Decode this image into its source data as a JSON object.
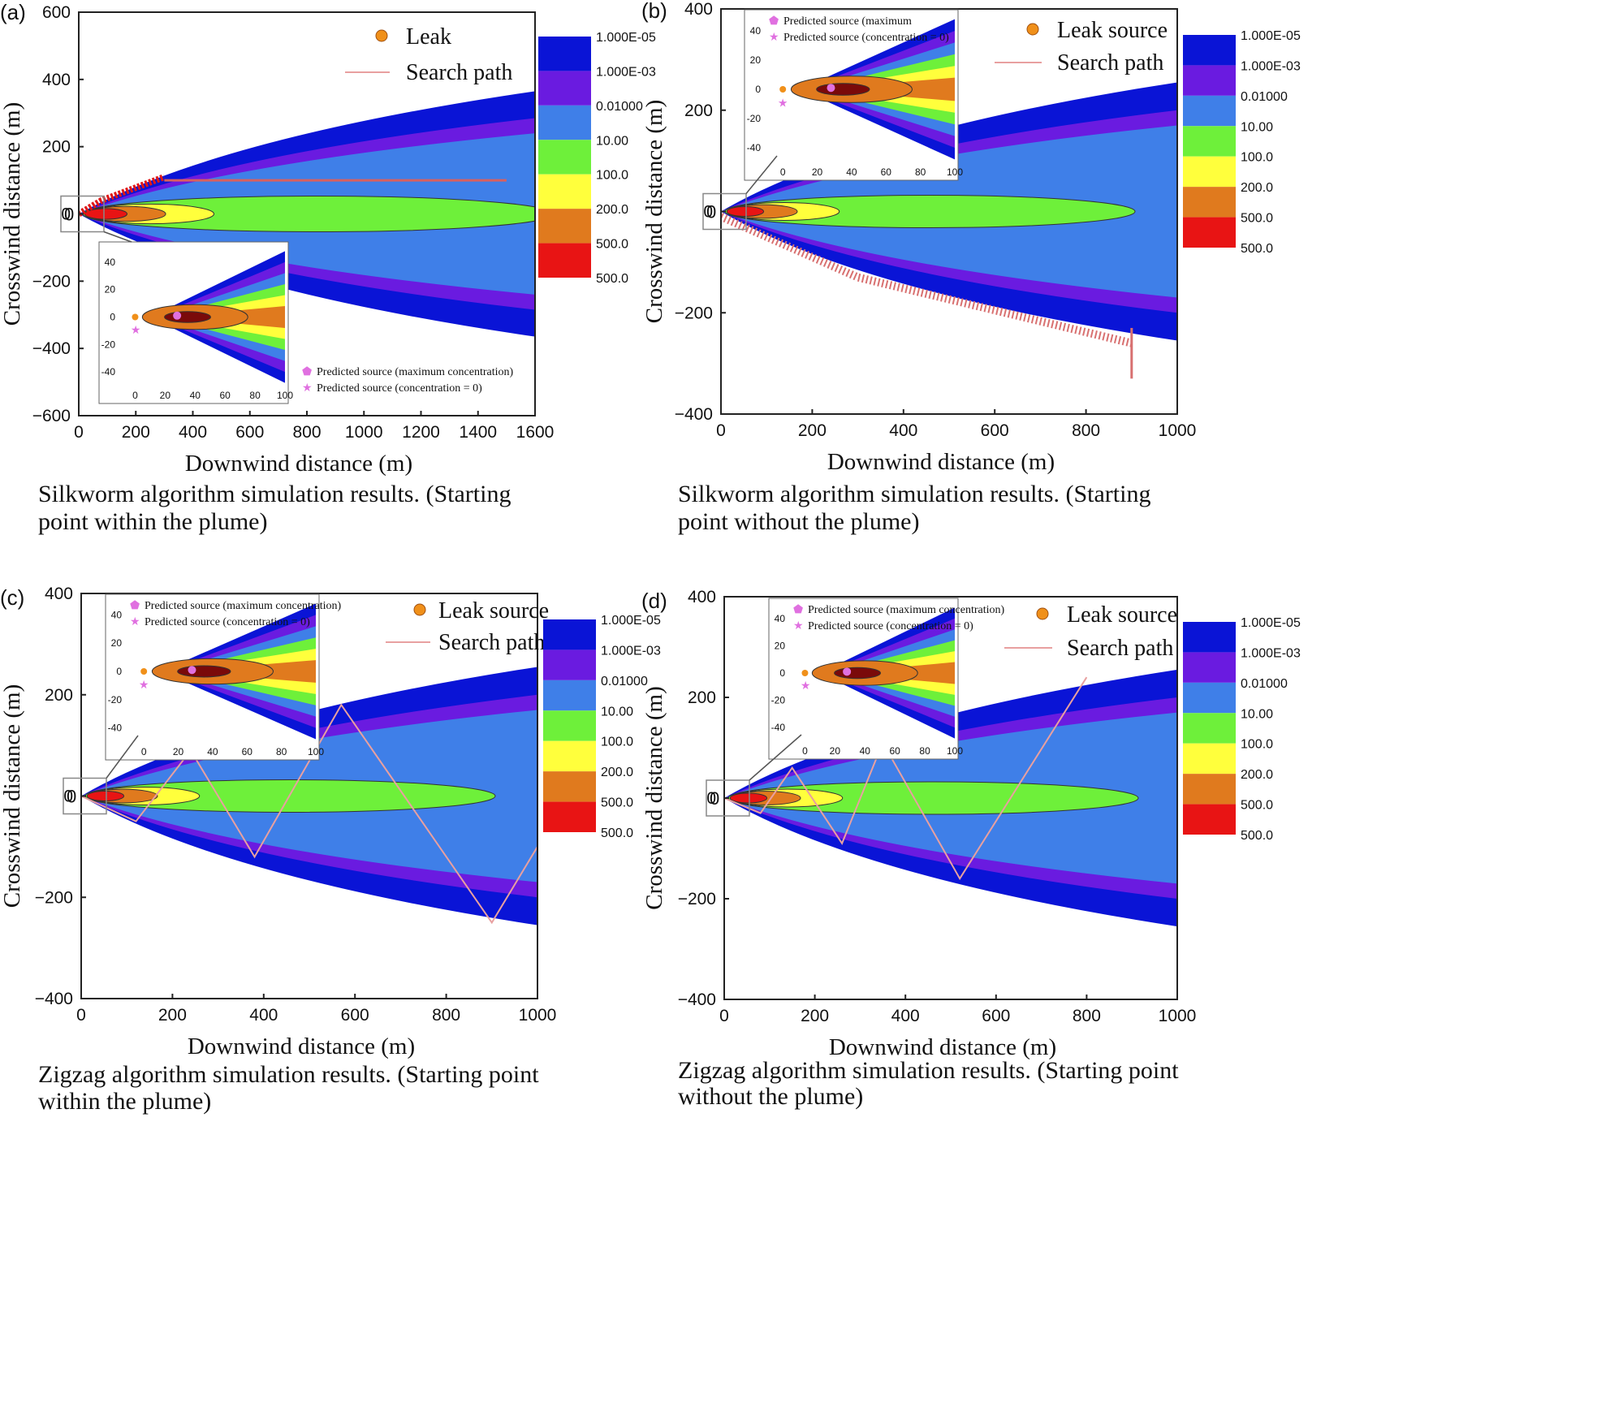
{
  "colors": {
    "c1": "#0a14d6",
    "c2": "#6a1be0",
    "c3": "#3f7fe8",
    "c4": "#6ef03a",
    "c5": "#ffff3c",
    "c6": "#e07a1e",
    "c7": "#e81414",
    "core": "#7a0a0a",
    "path": "#e8a0a0",
    "leak": "#f0901a",
    "predicted": "#e070e0"
  },
  "chart_data": [
    {
      "id": "a",
      "type": "contour",
      "panel_label": "(a)",
      "caption_lines": [
        "Silkworm algorithm simulation results. (Starting",
        "point within the plume)"
      ],
      "xlabel": "Downwind distance (m)",
      "ylabel": "Crosswind distance (m)",
      "xlim": [
        0,
        1600
      ],
      "ylim": [
        -600,
        600
      ],
      "xticks": [
        "0",
        "200",
        "400",
        "600",
        "800",
        "1000",
        "1200",
        "1400",
        "1600"
      ],
      "yticks": [
        "600",
        "400",
        "200",
        "0",
        "−200",
        "−400",
        "−600"
      ],
      "legend": {
        "leak": "Leak",
        "path": "Search path"
      },
      "colorbar": [
        "1.000E-05",
        "1.000E-03",
        "0.01000",
        "10.00",
        "100.0",
        "200.0",
        "500.0",
        "500.0"
      ],
      "plume_half_width_at_xmax": [
        365,
        285,
        240
      ],
      "inset": {
        "xticks": [
          "0",
          "20",
          "40",
          "60",
          "80",
          "100"
        ],
        "yticks": [
          "40",
          "20",
          "0",
          "-20",
          "-40"
        ],
        "legend": [
          "Predicted source (maximum concentration)",
          "Predicted source (concentration = 0)"
        ]
      }
    },
    {
      "id": "b",
      "type": "contour",
      "panel_label": "(b)",
      "caption_lines": [
        "Silkworm algorithm simulation results. (Starting",
        "point without the plume)"
      ],
      "xlabel": "Downwind distance (m)",
      "ylabel": "Crosswind distance (m)",
      "xlim": [
        0,
        1000
      ],
      "ylim": [
        -400,
        400
      ],
      "xticks": [
        "0",
        "200",
        "400",
        "600",
        "800",
        "1000"
      ],
      "yticks": [
        "400",
        "200",
        "0",
        "−200",
        "−400"
      ],
      "legend": {
        "leak": "Leak source",
        "path": "Search path"
      },
      "colorbar": [
        "1.000E-05",
        "1.000E-03",
        "0.01000",
        "10.00",
        "100.0",
        "200.0",
        "500.0",
        "500.0"
      ],
      "plume_half_width_at_xmax": [
        255,
        200,
        170
      ],
      "inset": {
        "xticks": [
          "0",
          "20",
          "40",
          "60",
          "80",
          "100"
        ],
        "yticks": [
          "40",
          "20",
          "0",
          "-20",
          "-40"
        ],
        "legend": [
          "Predicted source (maximum",
          "Predicted source (concentration = 0)"
        ]
      }
    },
    {
      "id": "c",
      "type": "contour",
      "panel_label": "(c)",
      "caption_lines": [
        "Zigzag algorithm simulation results. (Starting point",
        "within the plume)"
      ],
      "xlabel": "Downwind distance (m)",
      "ylabel": "Crosswind distance (m)",
      "xlim": [
        0,
        1000
      ],
      "ylim": [
        -400,
        400
      ],
      "xticks": [
        "0",
        "200",
        "400",
        "600",
        "800",
        "1000"
      ],
      "yticks": [
        "400",
        "200",
        "0",
        "−200",
        "−400"
      ],
      "legend": {
        "leak": "Leak source",
        "path": "Search path"
      },
      "colorbar": [
        "1.000E-05",
        "1.000E-03",
        "0.01000",
        "10.00",
        "100.0",
        "200.0",
        "500.0",
        "500.0"
      ],
      "plume_half_width_at_xmax": [
        255,
        200,
        170
      ],
      "path_points": [
        [
          0,
          0
        ],
        [
          120,
          -50
        ],
        [
          240,
          90
        ],
        [
          380,
          -120
        ],
        [
          570,
          180
        ],
        [
          900,
          -250
        ],
        [
          1000,
          -100
        ]
      ],
      "inset": {
        "xticks": [
          "0",
          "20",
          "40",
          "60",
          "80",
          "100"
        ],
        "yticks": [
          "40",
          "20",
          "0",
          "-20",
          "-40"
        ],
        "legend": [
          "Predicted source (maximum  concentration)",
          "Predicted source (concentration = 0)"
        ]
      }
    },
    {
      "id": "d",
      "type": "contour",
      "panel_label": "(d)",
      "caption_lines": [
        "Zigzag algorithm simulation results. (Starting point",
        "without the plume)"
      ],
      "xlabel": "Downwind distance (m)",
      "ylabel": "Crosswind distance (m)",
      "xlim": [
        0,
        1000
      ],
      "ylim": [
        -400,
        400
      ],
      "xticks": [
        "0",
        "200",
        "400",
        "600",
        "800",
        "1000"
      ],
      "yticks": [
        "400",
        "200",
        "0",
        "−200",
        "−400"
      ],
      "legend": {
        "leak": "Leak source",
        "path": "Search path"
      },
      "colorbar": [
        "1.000E-05",
        "1.000E-03",
        "0.01000",
        "10.00",
        "100.0",
        "200.0",
        "500.0",
        "500.0"
      ],
      "plume_half_width_at_xmax": [
        255,
        200,
        170
      ],
      "path_points": [
        [
          0,
          0
        ],
        [
          80,
          -30
        ],
        [
          150,
          60
        ],
        [
          260,
          -90
        ],
        [
          350,
          110
        ],
        [
          520,
          -160
        ],
        [
          800,
          240
        ]
      ],
      "inset": {
        "xticks": [
          "0",
          "20",
          "40",
          "60",
          "80",
          "100"
        ],
        "yticks": [
          "40",
          "20",
          "0",
          "-20",
          "-40"
        ],
        "legend": [
          "Predicted source (maximum  concentration)",
          "Predicted source (concentration = 0)"
        ]
      }
    }
  ]
}
